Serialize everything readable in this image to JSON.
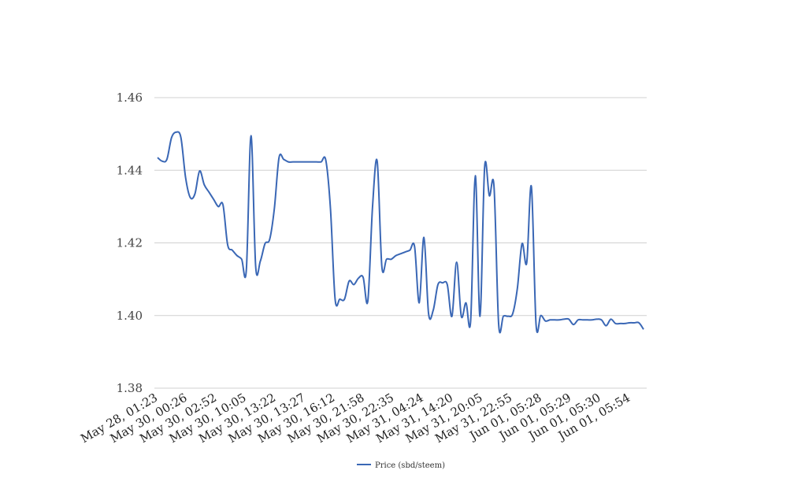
{
  "chart_data": {
    "type": "line",
    "title": "",
    "xlabel": "",
    "ylabel": "",
    "ylim": [
      1.38,
      1.46
    ],
    "yticks": [
      "1.38",
      "1.40",
      "1.42",
      "1.44",
      "1.46"
    ],
    "xtick_labels": [
      "May 28, 01:23",
      "May 30, 00:26",
      "May 30, 02:52",
      "May 30, 10:05",
      "May 30, 13:22",
      "May 30, 13:27",
      "May 30, 16:12",
      "May 30, 21:58",
      "May 30, 22:35",
      "May 31, 04:24",
      "May 31, 14:20",
      "May 31, 20:05",
      "May 31, 22:55",
      "Jun 01, 05:28",
      "Jun 01, 05:29",
      "Jun 01, 05:30",
      "Jun 01, 05:54"
    ],
    "grid": true,
    "legend_position": "bottom",
    "series": [
      {
        "name": "Price (sbd/steem)",
        "color": "#3a67b5",
        "values": [
          1.4435,
          1.4425,
          1.443,
          1.449,
          1.4505,
          1.449,
          1.438,
          1.4325,
          1.4335,
          1.4398,
          1.436,
          1.434,
          1.432,
          1.43,
          1.4305,
          1.4195,
          1.418,
          1.4165,
          1.4155,
          1.4125,
          1.4495,
          1.4135,
          1.415,
          1.4198,
          1.421,
          1.4295,
          1.4435,
          1.443,
          1.4423,
          1.4423,
          1.4423,
          1.4423,
          1.4423,
          1.4423,
          1.4423,
          1.4423,
          1.4428,
          1.4295,
          1.4045,
          1.4045,
          1.4045,
          1.4095,
          1.4085,
          1.4103,
          1.4105,
          1.404,
          1.4298,
          1.4425,
          1.4135,
          1.4155,
          1.4155,
          1.4165,
          1.417,
          1.4175,
          1.418,
          1.419,
          1.4035,
          1.4215,
          1.4005,
          1.4015,
          1.4085,
          1.409,
          1.4085,
          1.3998,
          1.4147,
          1.3998,
          1.4035,
          1.3985,
          1.4385,
          1.3998,
          1.441,
          1.433,
          1.4355,
          1.3975,
          1.3998,
          1.3998,
          1.4005,
          1.4075,
          1.4198,
          1.4145,
          1.4355,
          1.3975,
          1.4,
          1.3985,
          1.3988,
          1.3988,
          1.3988,
          1.399,
          1.399,
          1.3975,
          1.3988,
          1.3988,
          1.3988,
          1.3988,
          1.399,
          1.3988,
          1.3972,
          1.399,
          1.3978,
          1.3978,
          1.3978,
          1.398,
          1.398,
          1.398,
          1.3962
        ]
      }
    ]
  }
}
